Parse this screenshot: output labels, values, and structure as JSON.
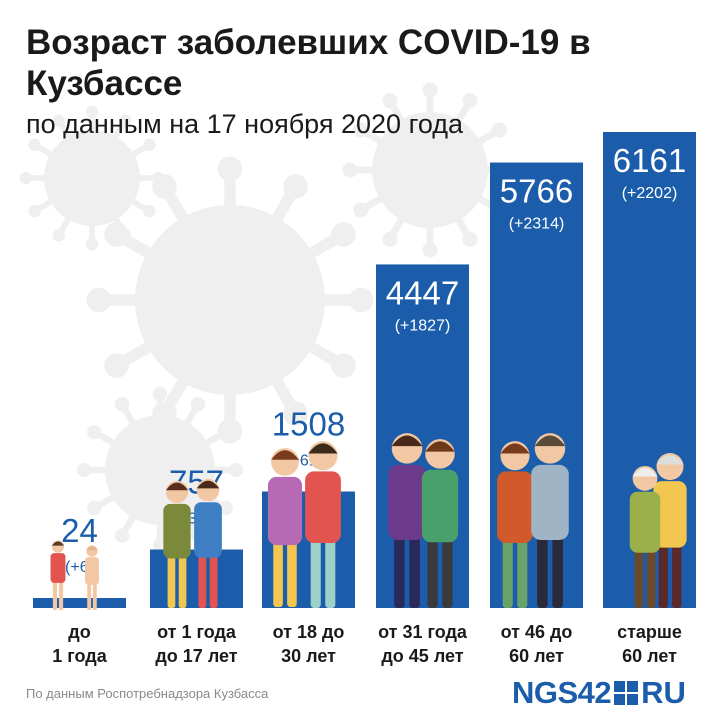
{
  "header": {
    "title": "Возраст заболевших COVID-19 в Кузбассе",
    "subtitle": "по данным на 17 ноября 2020 года"
  },
  "footer": {
    "source": "По данным Роспотребнадзора Кузбасса",
    "logo_part1": "NGS42",
    "logo_part2": "RU"
  },
  "colors": {
    "bar": "#1b5dab",
    "value_text": "#1b5dab",
    "value_text_inside": "#ffffff",
    "background_virus": "#efefef"
  },
  "chart_data": {
    "type": "bar",
    "categories": [
      [
        "до",
        "1 года"
      ],
      [
        "от 1 года",
        "до 17 лет"
      ],
      [
        "от 18 до",
        "30 лет"
      ],
      [
        "от 31 года",
        "до 45 лет"
      ],
      [
        "от 46 до",
        "60 лет"
      ],
      [
        "старше",
        "60 лет"
      ]
    ],
    "values": [
      24,
      757,
      1508,
      4447,
      5766,
      6161
    ],
    "changes": [
      "(+6)",
      "(+338)",
      "(+615)",
      "(+1827)",
      "(+2314)",
      "(+2202)"
    ],
    "value_labels": [
      "24",
      "757",
      "1508",
      "4447",
      "5766",
      "6161"
    ],
    "ylim": [
      0,
      6161
    ],
    "grid": false,
    "legend": "none"
  }
}
